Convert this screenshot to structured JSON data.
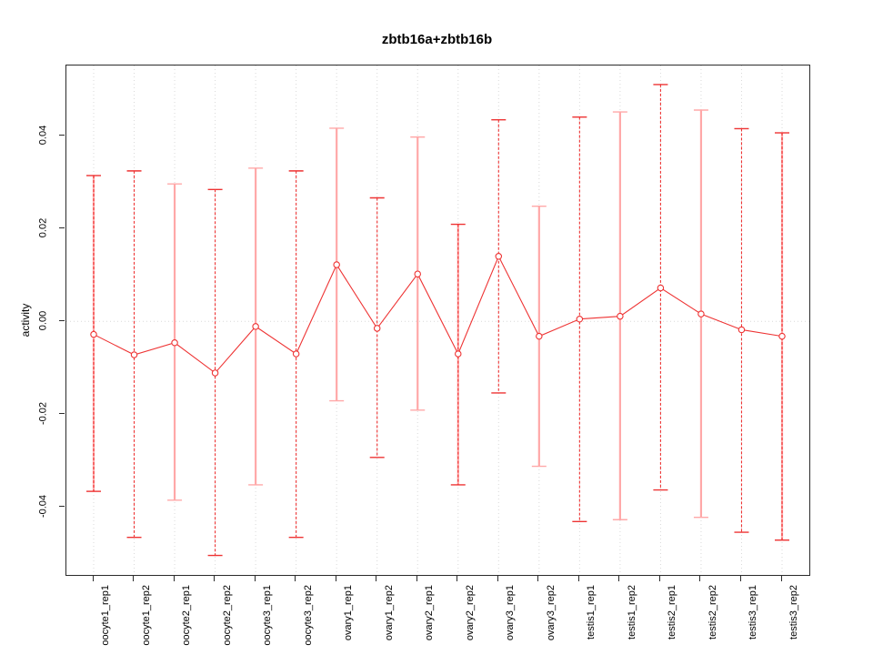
{
  "chart_data": {
    "type": "line",
    "title": "zbtb16a+zbtb16b",
    "xlabel": "",
    "ylabel": "activity",
    "ylim": [
      -0.0546,
      0.0551
    ],
    "grid": {
      "vertical_per_category": true,
      "horizontal_zero_line": true,
      "style": "dotted-lightgray"
    },
    "legend": "none",
    "ytick_values": [
      0.04,
      0.02,
      0.0,
      -0.02,
      -0.04
    ],
    "ytick_labels": [
      "0.04",
      "0.02",
      "0.00",
      "-0.02",
      "-0.04"
    ],
    "categories": [
      "oocyte1_rep1",
      "oocyte1_rep2",
      "oocyte2_rep1",
      "oocyte2_rep2",
      "oocyte3_rep1",
      "oocyte3_rep2",
      "ovary1_rep1",
      "ovary1_rep2",
      "ovary2_rep1",
      "ovary2_rep2",
      "ovary3_rep1",
      "ovary3_rep2",
      "testis1_rep1",
      "testis1_rep2",
      "testis2_rep1",
      "testis2_rep2",
      "testis3_rep1",
      "testis3_rep2"
    ],
    "series": [
      {
        "name": "activity",
        "marker": "open-circle",
        "values": [
          -0.0028,
          -0.0072,
          -0.0046,
          -0.0111,
          -0.0011,
          -0.007,
          0.0122,
          -0.0015,
          0.0102,
          -0.007,
          0.014,
          -0.0032,
          0.0005,
          0.0011,
          0.0072,
          0.0016,
          -0.0018,
          -0.0032
        ],
        "error_high": [
          0.0314,
          0.0324,
          0.0296,
          0.0284,
          0.033,
          0.0324,
          0.0416,
          0.0266,
          0.0397,
          0.0209,
          0.0434,
          0.0248,
          0.044,
          0.0451,
          0.051,
          0.0455,
          0.0415,
          0.0406
        ],
        "error_low": [
          -0.0366,
          -0.0465,
          -0.0385,
          -0.0504,
          -0.0352,
          -0.0465,
          -0.0171,
          -0.0293,
          -0.0191,
          -0.0352,
          -0.0154,
          -0.0312,
          -0.0431,
          -0.0427,
          -0.0363,
          -0.0422,
          -0.0454,
          -0.0471
        ]
      }
    ],
    "error_bar_styles": [
      "mixed",
      "dashed",
      "solid",
      "dashed",
      "solid",
      "dashed",
      "solid",
      "dashed",
      "solid",
      "mixed",
      "dashed",
      "solid",
      "dashed",
      "solid",
      "dashed",
      "solid",
      "dashed",
      "mixed"
    ],
    "colors": {
      "point": "#ee3333",
      "line": "#ee3333",
      "error_dashed": "#ee3333",
      "error_solid": "#ffa8a8",
      "grid": "#d9d9d9",
      "frame": "#2b2b2b",
      "title": "#000000"
    }
  }
}
